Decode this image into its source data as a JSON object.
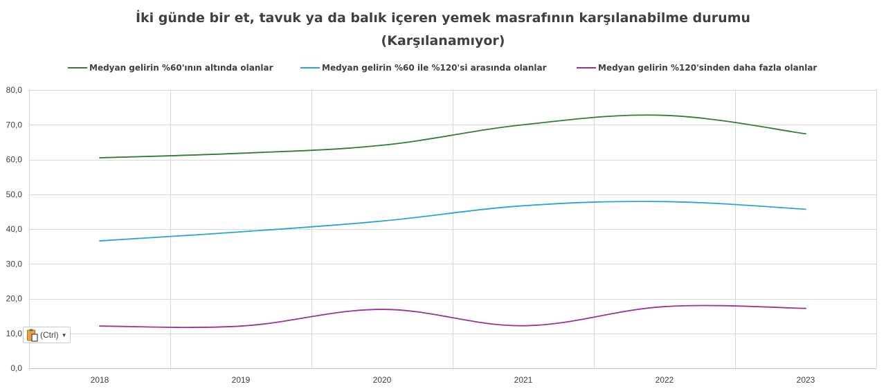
{
  "chart_data": {
    "type": "line",
    "title_lines": [
      "İki günde bir et, tavuk ya da balık içeren yemek masrafının karşılanabilme durumu",
      "(Karşılanamıyor)"
    ],
    "xlabel": "",
    "ylabel": "",
    "categories": [
      "2018",
      "2019",
      "2020",
      "2021",
      "2022",
      "2023"
    ],
    "ylim": [
      0,
      80
    ],
    "y_ticks": [
      "0,0",
      "10,0",
      "20,0",
      "30,0",
      "40,0",
      "50,0",
      "60,0",
      "70,0",
      "80,0"
    ],
    "grid": true,
    "legend_position": "top",
    "series": [
      {
        "name": "Medyan gelirin %60'ının altında olanlar",
        "color": "#2e7d32",
        "values": [
          60.5,
          61.8,
          64.1,
          70.0,
          72.7,
          67.4
        ]
      },
      {
        "name": "Medyan gelirin %60 ile %120'si arasında olanlar",
        "color": "#29a3d9",
        "values": [
          36.6,
          39.2,
          42.3,
          46.7,
          47.9,
          45.7
        ]
      },
      {
        "name": "Medyan gelirin  %120'sinden daha fazla olanlar",
        "color": "#9c2f9e",
        "values": [
          12.1,
          12.1,
          16.9,
          12.2,
          17.7,
          17.2
        ]
      }
    ]
  },
  "paste_options": {
    "label": "(Ctrl)",
    "icon": "clipboard-icon",
    "caret_icon": "caret-down-icon"
  }
}
